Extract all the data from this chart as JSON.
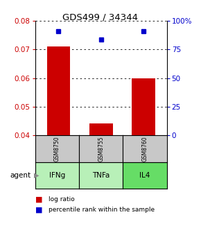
{
  "title": "GDS499 / 34344",
  "categories": [
    "IFNg",
    "TNFa",
    "IL4"
  ],
  "sample_ids": [
    "GSM8750",
    "GSM8755",
    "GSM8760"
  ],
  "bar_values": [
    0.071,
    0.044,
    0.06
  ],
  "bar_base": 0.04,
  "percentile_values": [
    91,
    84,
    91
  ],
  "ylim_left": [
    0.04,
    0.08
  ],
  "ylim_right": [
    0,
    100
  ],
  "yticks_left": [
    0.04,
    0.05,
    0.06,
    0.07,
    0.08
  ],
  "yticks_right": [
    0,
    25,
    50,
    75,
    100
  ],
  "ytick_labels_right": [
    "0",
    "25",
    "50",
    "75",
    "100%"
  ],
  "bar_color": "#cc0000",
  "percentile_color": "#0000cc",
  "cell_bg_gray": "#c8c8c8",
  "cell_bg_green_light": "#b8f0b8",
  "cell_bg_green_dark": "#66dd66",
  "left_axis_color": "#cc0000",
  "right_axis_color": "#0000cc",
  "legend_log_label": "log ratio",
  "legend_pct_label": "percentile rank within the sample",
  "agent_label": "agent",
  "bar_width": 0.55
}
